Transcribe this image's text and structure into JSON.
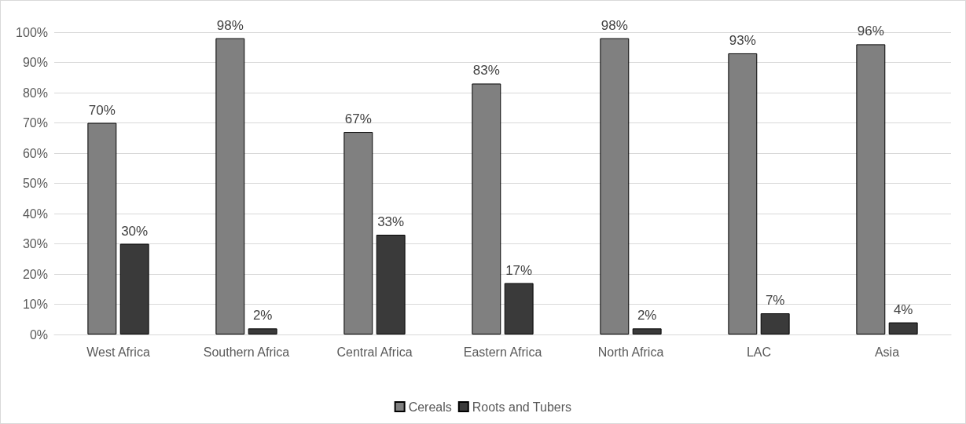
{
  "chart_data": {
    "type": "bar",
    "categories": [
      "West Africa",
      "Southern Africa",
      "Central Africa",
      "Eastern Africa",
      "North Africa",
      "LAC",
      "Asia"
    ],
    "series": [
      {
        "name": "Cereals",
        "color": "#808080",
        "values": [
          70,
          98,
          67,
          83,
          98,
          93,
          96
        ],
        "value_labels": [
          "70%",
          "98%",
          "67%",
          "83%",
          "98%",
          "93%",
          "96%"
        ]
      },
      {
        "name": "Roots and Tubers",
        "color": "#3a3a3a",
        "values": [
          30,
          2,
          33,
          17,
          2,
          7,
          4
        ],
        "value_labels": [
          "30%",
          "2%",
          "33%",
          "17%",
          "2%",
          "7%",
          "4%"
        ]
      }
    ],
    "ylim": [
      0,
      100
    ],
    "yticks": [
      {
        "value": 0,
        "label": "0%"
      },
      {
        "value": 10,
        "label": "10%"
      },
      {
        "value": 20,
        "label": "20%"
      },
      {
        "value": 30,
        "label": "30%"
      },
      {
        "value": 40,
        "label": "40%"
      },
      {
        "value": 50,
        "label": "50%"
      },
      {
        "value": 60,
        "label": "60%"
      },
      {
        "value": 70,
        "label": "70%"
      },
      {
        "value": 80,
        "label": "80%"
      },
      {
        "value": 90,
        "label": "90%"
      },
      {
        "value": 100,
        "label": "100%"
      }
    ],
    "grid": "y",
    "legend": "bottom"
  }
}
